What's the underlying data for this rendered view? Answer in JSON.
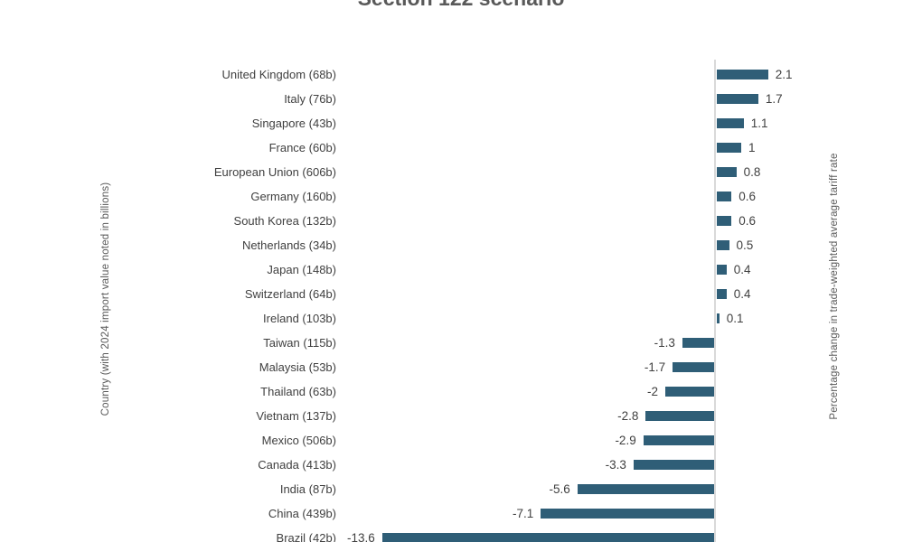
{
  "title": "Section 122 scenario",
  "left_axis_label": "Country (with 2024 import value noted in billions)",
  "right_axis_label": "Percentage change in trade-weighted average tariff rate",
  "colors": {
    "bar": "#2F5E77",
    "axis_line": "#D9D9D9",
    "text": "#404040",
    "muted_text": "#595959"
  },
  "chart_data": {
    "type": "bar",
    "orientation": "horizontal",
    "title": "Section 122 scenario",
    "xlabel": "Percentage change in trade-weighted average tariff rate",
    "ylabel": "Country (with 2024 import value noted in billions)",
    "grid": false,
    "legend": false,
    "xlim": [
      -13.6,
      2.1
    ],
    "categories": [
      "United Kingdom (68b)",
      "Italy (76b)",
      "Singapore (43b)",
      "France (60b)",
      "European Union (606b)",
      "Germany (160b)",
      "South Korea (132b)",
      "Netherlands (34b)",
      "Japan (148b)",
      "Switzerland (64b)",
      "Ireland (103b)",
      "Taiwan (115b)",
      "Malaysia (53b)",
      "Thailand (63b)",
      "Vietnam (137b)",
      "Mexico (506b)",
      "Canada (413b)",
      "India (87b)",
      "China (439b)",
      "Brazil (42b)"
    ],
    "values": [
      2.1,
      1.7,
      1.1,
      1,
      0.8,
      0.6,
      0.6,
      0.5,
      0.4,
      0.4,
      0.1,
      -1.3,
      -1.7,
      -2,
      -2.8,
      -2.9,
      -3.3,
      -5.6,
      -7.1,
      -13.6
    ],
    "value_labels": [
      "2.1",
      "1.7",
      "1.1",
      "1",
      "0.8",
      "0.6",
      "0.6",
      "0.5",
      "0.4",
      "0.4",
      "0.1",
      "-1.3",
      "-1.7",
      "-2",
      "-2.8",
      "-2.9",
      "-3.3",
      "-5.6",
      "-7.1",
      "-13.6"
    ]
  }
}
